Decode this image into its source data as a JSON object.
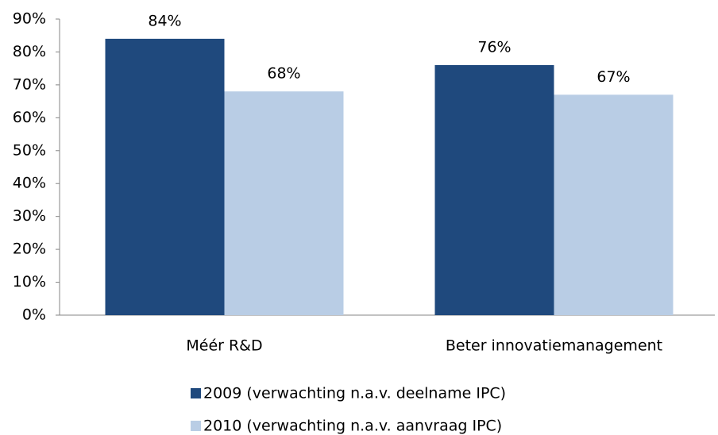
{
  "chart_data": {
    "type": "bar",
    "categories": [
      "Méér R&D",
      "Beter innovatiemanagement"
    ],
    "series": [
      {
        "name": "2009 (verwachting n.a.v. deelname IPC)",
        "color": "#1f497d",
        "values": [
          84,
          76
        ],
        "value_labels": [
          "84%",
          "76%"
        ]
      },
      {
        "name": "2010 (verwachting n.a.v. aanvraag IPC)",
        "color": "#b9cde5",
        "values": [
          68,
          67
        ],
        "value_labels": [
          "68%",
          "67%"
        ]
      }
    ],
    "ylim": [
      0,
      90
    ],
    "yticks": [
      {
        "value": 0,
        "label": "0%"
      },
      {
        "value": 10,
        "label": "10%"
      },
      {
        "value": 20,
        "label": "20%"
      },
      {
        "value": 30,
        "label": "30%"
      },
      {
        "value": 40,
        "label": "40%"
      },
      {
        "value": 50,
        "label": "50%"
      },
      {
        "value": 60,
        "label": "60%"
      },
      {
        "value": 70,
        "label": "70%"
      },
      {
        "value": 80,
        "label": "80%"
      },
      {
        "value": 90,
        "label": "90%"
      }
    ],
    "grid": false,
    "legend": "bottom"
  }
}
